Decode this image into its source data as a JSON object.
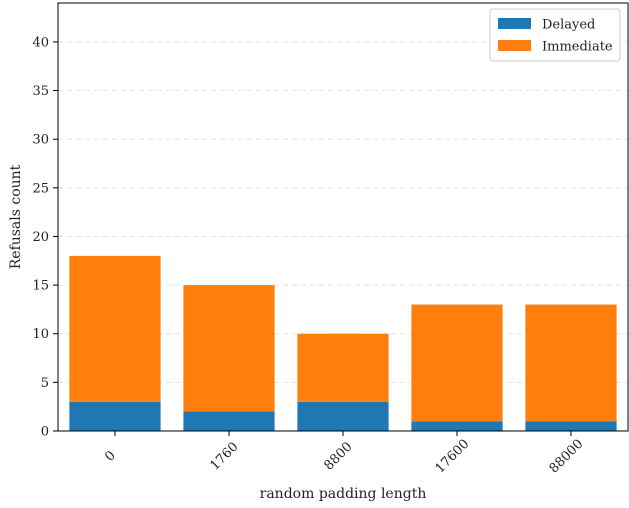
{
  "chart_data": {
    "type": "bar",
    "stacked": true,
    "title": "",
    "xlabel": "random padding length",
    "ylabel": "Refusals count",
    "categories": [
      "0",
      "1760",
      "8800",
      "17600",
      "88000"
    ],
    "series": [
      {
        "name": "Delayed",
        "values": [
          3,
          2,
          3,
          1,
          1
        ],
        "color": "#1f77b4"
      },
      {
        "name": "Immediate",
        "values": [
          15,
          13,
          7,
          12,
          12
        ],
        "color": "#ff7f0e"
      }
    ],
    "ylim": [
      0,
      44
    ],
    "yticks": [
      0,
      5,
      10,
      15,
      20,
      25,
      30,
      35,
      40
    ],
    "grid": "horizontal-dashed",
    "legend_position": "top-right",
    "xtick_rotation": 45
  }
}
